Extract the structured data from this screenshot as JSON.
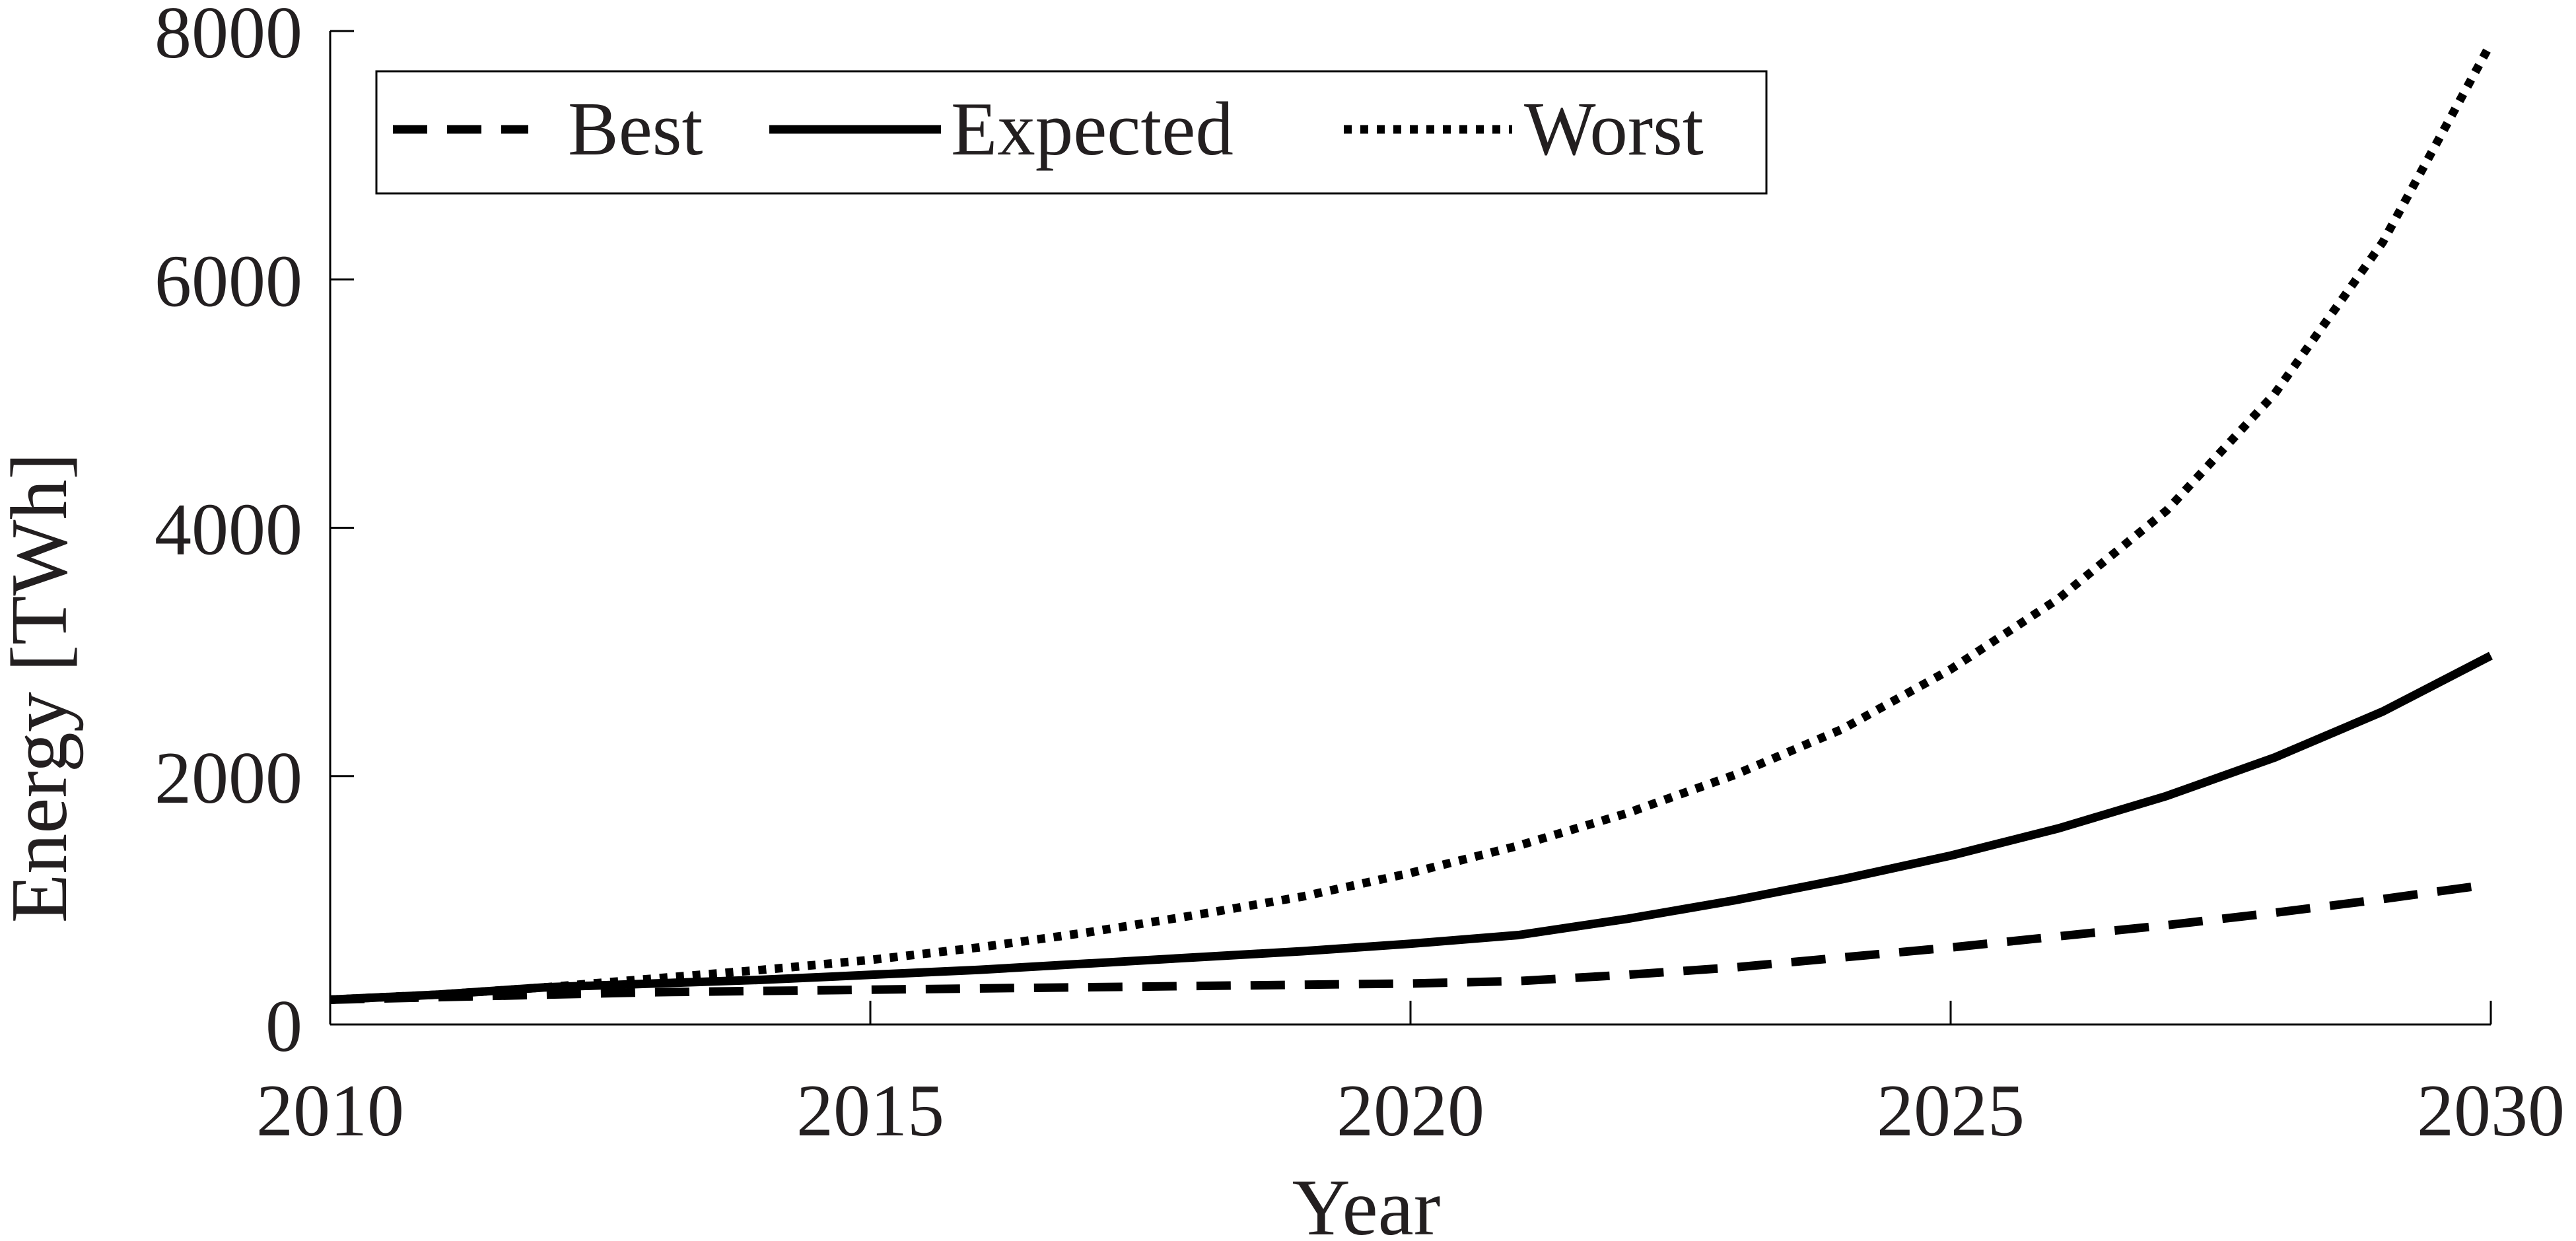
{
  "chart_data": {
    "type": "line",
    "title": "",
    "xlabel": "Year",
    "ylabel": "Energy [TWh]",
    "xlim": [
      2010,
      2030
    ],
    "ylim": [
      0,
      8000
    ],
    "xticks": [
      2010,
      2015,
      2020,
      2025,
      2030
    ],
    "yticks": [
      0,
      2000,
      4000,
      6000,
      8000
    ],
    "xtick_labels": [
      "2010",
      "2015",
      "2020",
      "2025",
      "2030"
    ],
    "ytick_labels": [
      "0",
      "2000",
      "4000",
      "6000",
      "8000"
    ],
    "grid": false,
    "legend_position": "top-left",
    "legend_orientation": "horizontal",
    "x": [
      2010,
      2011,
      2012,
      2013,
      2014,
      2015,
      2016,
      2017,
      2018,
      2019,
      2020,
      2021,
      2022,
      2023,
      2024,
      2025,
      2026,
      2027,
      2028,
      2029,
      2030
    ],
    "series": [
      {
        "name": "Best",
        "line_style": "dashed",
        "color": "#000000",
        "values": [
          200,
          220,
          240,
          260,
          270,
          280,
          290,
          300,
          310,
          320,
          330,
          350,
          400,
          460,
          540,
          620,
          710,
          800,
          900,
          1010,
          1130
        ]
      },
      {
        "name": "Expected",
        "line_style": "solid",
        "color": "#000000",
        "values": [
          200,
          240,
          300,
          330,
          360,
          400,
          440,
          490,
          540,
          590,
          650,
          720,
          850,
          1000,
          1170,
          1360,
          1580,
          1840,
          2150,
          2520,
          2970
        ]
      },
      {
        "name": "Worst",
        "line_style": "dotted",
        "color": "#000000",
        "values": [
          200,
          240,
          300,
          370,
          440,
          520,
          620,
          740,
          880,
          1030,
          1220,
          1440,
          1700,
          2010,
          2380,
          2860,
          3430,
          4140,
          5080,
          6300,
          7900
        ]
      }
    ]
  }
}
